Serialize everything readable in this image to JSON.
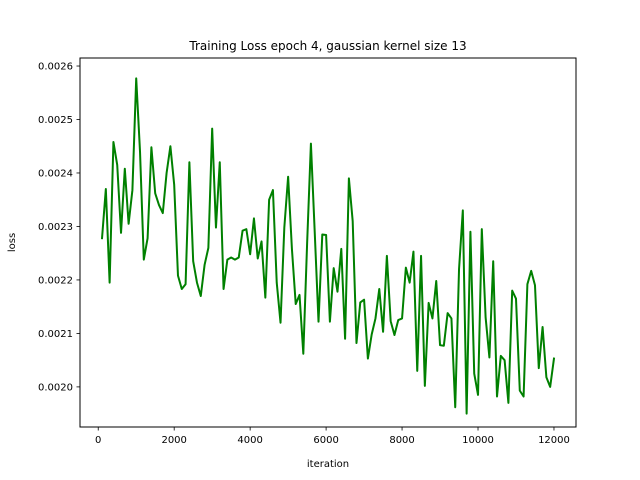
{
  "chart_data": {
    "type": "line",
    "title": "Training Loss epoch 4, gaussian kernel size 13",
    "xlabel": "iteration",
    "ylabel": "loss",
    "xlim": [
      -480,
      12580
    ],
    "ylim": [
      0.001925,
      0.002615
    ],
    "xticks": [
      0,
      2000,
      4000,
      6000,
      8000,
      10000,
      12000
    ],
    "yticks": [
      0.002,
      0.0021,
      0.0022,
      0.0023,
      0.0024,
      0.0025,
      0.0026
    ],
    "xtick_labels": [
      "0",
      "2000",
      "4000",
      "6000",
      "8000",
      "10000",
      "12000"
    ],
    "ytick_labels": [
      "0.0020",
      "0.0021",
      "0.0022",
      "0.0023",
      "0.0024",
      "0.0025",
      "0.0026"
    ],
    "grid": false,
    "series": [
      {
        "color": "#008000",
        "x": [
          100,
          200,
          300,
          400,
          500,
          600,
          700,
          800,
          900,
          1000,
          1100,
          1200,
          1300,
          1400,
          1500,
          1600,
          1700,
          1800,
          1900,
          2000,
          2100,
          2200,
          2300,
          2400,
          2500,
          2600,
          2700,
          2800,
          2900,
          3000,
          3100,
          3200,
          3300,
          3400,
          3500,
          3600,
          3700,
          3800,
          3900,
          4000,
          4100,
          4200,
          4300,
          4400,
          4500,
          4600,
          4700,
          4800,
          4900,
          5000,
          5100,
          5200,
          5300,
          5400,
          5500,
          5600,
          5700,
          5800,
          5900,
          6000,
          6100,
          6200,
          6300,
          6400,
          6500,
          6600,
          6700,
          6800,
          6900,
          7000,
          7100,
          7200,
          7300,
          7400,
          7500,
          7600,
          7700,
          7800,
          7900,
          8000,
          8100,
          8200,
          8300,
          8400,
          8500,
          8600,
          8700,
          8800,
          8900,
          9000,
          9100,
          9200,
          9300,
          9400,
          9500,
          9600,
          9700,
          9800,
          9900,
          10000,
          10100,
          10200,
          10300,
          10400,
          10500,
          10600,
          10700,
          10800,
          10900,
          11000,
          11100,
          11200,
          11300,
          11400,
          11500,
          11600,
          11700,
          11800,
          11900,
          12000
        ],
        "values": [
          0.002278,
          0.00237,
          0.002195,
          0.002458,
          0.002415,
          0.002288,
          0.002408,
          0.002305,
          0.002368,
          0.002577,
          0.00244,
          0.002238,
          0.002278,
          0.002448,
          0.002362,
          0.00234,
          0.002325,
          0.0024,
          0.00245,
          0.002378,
          0.002208,
          0.002183,
          0.002192,
          0.00242,
          0.002235,
          0.002195,
          0.00217,
          0.002228,
          0.00226,
          0.002483,
          0.002298,
          0.00242,
          0.002183,
          0.002238,
          0.002242,
          0.002238,
          0.002242,
          0.002292,
          0.002295,
          0.002248,
          0.002315,
          0.00224,
          0.002272,
          0.002167,
          0.00235,
          0.002368,
          0.002195,
          0.00212,
          0.002298,
          0.002393,
          0.002258,
          0.002155,
          0.002172,
          0.002062,
          0.002268,
          0.002455,
          0.00229,
          0.002122,
          0.002285,
          0.002284,
          0.002122,
          0.002222,
          0.002178,
          0.002258,
          0.00209,
          0.00239,
          0.00231,
          0.002082,
          0.002158,
          0.002163,
          0.002053,
          0.002098,
          0.002128,
          0.002183,
          0.002103,
          0.002245,
          0.002123,
          0.002097,
          0.002125,
          0.002128,
          0.002223,
          0.002195,
          0.002253,
          0.00203,
          0.002245,
          0.002002,
          0.002157,
          0.002128,
          0.002198,
          0.002078,
          0.002077,
          0.002138,
          0.002128,
          0.001962,
          0.00222,
          0.00233,
          0.00195,
          0.00229,
          0.002025,
          0.001985,
          0.002295,
          0.00213,
          0.002055,
          0.002235,
          0.001982,
          0.002058,
          0.00205,
          0.00197,
          0.00218,
          0.002165,
          0.001993,
          0.001982,
          0.002192,
          0.002217,
          0.00219,
          0.002035,
          0.002112,
          0.002018,
          0.002,
          0.002053
        ]
      }
    ]
  }
}
